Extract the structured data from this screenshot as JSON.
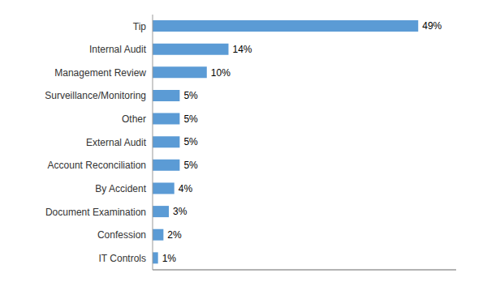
{
  "chart_data": {
    "type": "bar",
    "orientation": "horizontal",
    "categories": [
      "Tip",
      "Internal Audit",
      "Management Review",
      "Surveillance/Monitoring",
      "Other",
      "External Audit",
      "Account Reconciliation",
      "By Accident",
      "Document Examination",
      "Confession",
      "IT Controls"
    ],
    "values": [
      49,
      14,
      10,
      5,
      5,
      5,
      5,
      4,
      3,
      2,
      1
    ],
    "value_labels": [
      "49%",
      "14%",
      "10%",
      "5%",
      "5%",
      "5%",
      "5%",
      "4%",
      "3%",
      "2%",
      "1%"
    ],
    "color": "#5B9BD5",
    "xlim": [
      0,
      56
    ],
    "data_labels": true,
    "tick_labels": "y",
    "grid": false
  }
}
